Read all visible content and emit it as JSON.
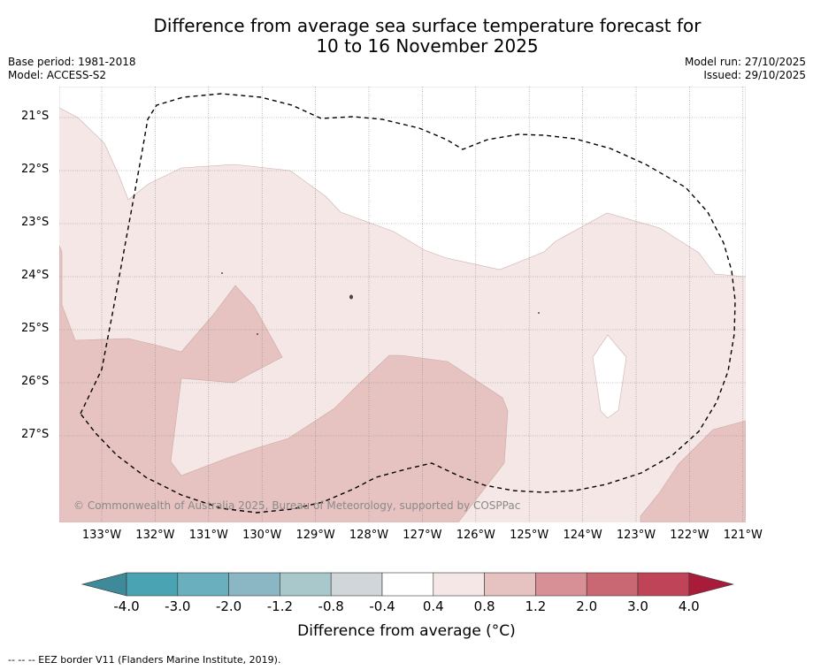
{
  "title_line1": "Difference from average sea surface temperature forecast for",
  "title_line2": "10 to 16 November 2025",
  "base_period": "Base period: 1981-2018",
  "model": "Model: ACCESS-S2",
  "model_run": "Model run: 27/10/2025",
  "issued": "Issued: 29/10/2025",
  "lat_labels": [
    "21°S",
    "22°S",
    "23°S",
    "24°S",
    "25°S",
    "26°S",
    "27°S"
  ],
  "lon_labels": [
    "133°W",
    "132°W",
    "131°W",
    "130°W",
    "129°W",
    "128°W",
    "127°W",
    "126°W",
    "125°W",
    "124°W",
    "123°W",
    "122°W",
    "121°W"
  ],
  "copyright": "© Commonwealth of Australia 2025, Bureau of Meteorology, supported by COSPPac",
  "colorbar": {
    "title": "Difference from average (°C)",
    "levels": [
      "-4.0",
      "-3.0",
      "-2.0",
      "-1.2",
      "-0.8",
      "-0.4",
      "0.4",
      "0.8",
      "1.2",
      "2.0",
      "3.0",
      "4.0"
    ],
    "colors": [
      "#3e8a99",
      "#4aa3b3",
      "#6aafbd",
      "#8ab7c3",
      "#a8c8cc",
      "#d0d6d9",
      "#ffffff",
      "#f5e7e5",
      "#e6c3c0",
      "#d89097",
      "#c96772",
      "#c04458",
      "#a81c3a"
    ]
  },
  "map_colors": {
    "band_04_08": "#f5e7e5",
    "band_08_12": "#e6c3c0",
    "eez": "#000000"
  },
  "footer": "--  --  -- EEZ border V11 (Flanders Marine Institute, 2019)."
}
